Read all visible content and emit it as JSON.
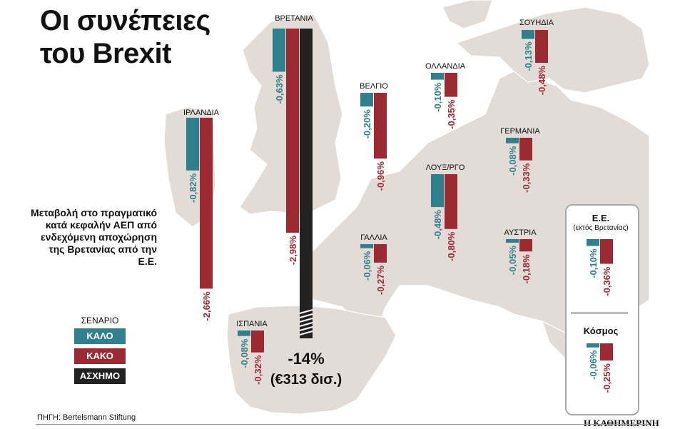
{
  "title_line1": "Οι συνέπειες",
  "title_line2": "του Brexit",
  "description": "Μεταβολή στο πραγματικό κατά κεφαλήν ΑΕΠ από ενδεχόμενη αποχώρηση της Βρετανίας από την Ε.Ε.",
  "legend": {
    "title": "ΣΕΝΑΡΙΟ",
    "items": [
      {
        "label": "ΚΑΛΟ",
        "color": "#2f7f8c"
      },
      {
        "label": "ΚΑΚΟ",
        "color": "#9b2a32"
      },
      {
        "label": "ΑΣΧΗΜΟ",
        "color": "#222222"
      }
    ]
  },
  "source": "ΠΗΓΗ: Bertelsmann Stiftung",
  "brand": "Η ΚΑΘΗΜΕΡΙΝΗ",
  "summary_box": {
    "eu_title": "Ε.Ε.",
    "eu_subtitle": "(εκτός Βρετανίας)",
    "world_title": "Κόσμος"
  },
  "colors": {
    "good": "#2f7f8c",
    "bad": "#9b2a32",
    "worst": "#222222",
    "land": "#e3dbd5",
    "sea": "#ffffff"
  },
  "chart_data": {
    "type": "bar",
    "title": "Μεταβολή στο πραγματικό κατά κεφαλήν ΑΕΠ από ενδεχόμενη αποχώρηση της Βρετανίας από την Ε.Ε.",
    "unit": "%",
    "series": [
      {
        "name": "ΚΑΛΟ",
        "color": "#2f7f8c"
      },
      {
        "name": "ΚΑΚΟ",
        "color": "#9b2a32"
      },
      {
        "name": "ΑΣΧΗΜΟ",
        "color": "#222222"
      }
    ],
    "countries": [
      {
        "name": "ΙΡΛΑΝΔΙΑ",
        "good": -0.82,
        "bad": -2.66,
        "good_label": "-0,82%",
        "bad_label": "-2,66%"
      },
      {
        "name": "ΒΡΕΤΑΝΙΑ",
        "good": -0.63,
        "bad": -2.98,
        "worst": -14,
        "good_label": "-0,63%",
        "bad_label": "-2,98%",
        "worst_label": "-14%",
        "worst_sub": "(€313 δισ.)"
      },
      {
        "name": "ΒΕΛΓΙΟ",
        "good": -0.2,
        "bad": -0.96,
        "good_label": "-0,20%",
        "bad_label": "-0,96%"
      },
      {
        "name": "ΟΛΛΑΝΔΙΑ",
        "good": -0.1,
        "bad": -0.35,
        "good_label": "-0,10%",
        "bad_label": "-0,35%"
      },
      {
        "name": "ΣΟΥΗΔΙΑ",
        "good": -0.13,
        "bad": -0.48,
        "good_label": "-0,13%",
        "bad_label": "-0,48%"
      },
      {
        "name": "ΓΕΡΜΑΝΙΑ",
        "good": -0.08,
        "bad": -0.33,
        "good_label": "-0,08%",
        "bad_label": "-0,33%"
      },
      {
        "name": "ΛΟΥΞ/ΡΓΟ",
        "good": -0.48,
        "bad": -0.8,
        "good_label": "-0,48%",
        "bad_label": "-0,80%"
      },
      {
        "name": "ΓΑΛΛΙΑ",
        "good": -0.06,
        "bad": -0.27,
        "good_label": "-0,06%",
        "bad_label": "-0,27%"
      },
      {
        "name": "ΑΥΣΤΡΙΑ",
        "good": -0.05,
        "bad": -0.18,
        "good_label": "-0,05%",
        "bad_label": "-0,18%"
      },
      {
        "name": "ΙΣΠΑΝΙΑ",
        "good": -0.08,
        "bad": -0.32,
        "good_label": "-0,08%",
        "bad_label": "-0,32%"
      },
      {
        "name": "Ε.Ε. (εκτός Βρετανίας)",
        "good": -0.1,
        "bad": -0.36,
        "good_label": "-0,10%",
        "bad_label": "-0,36%"
      },
      {
        "name": "Κόσμος",
        "good": -0.06,
        "bad": -0.25,
        "good_label": "-0,06%",
        "bad_label": "-0,25%"
      }
    ]
  }
}
